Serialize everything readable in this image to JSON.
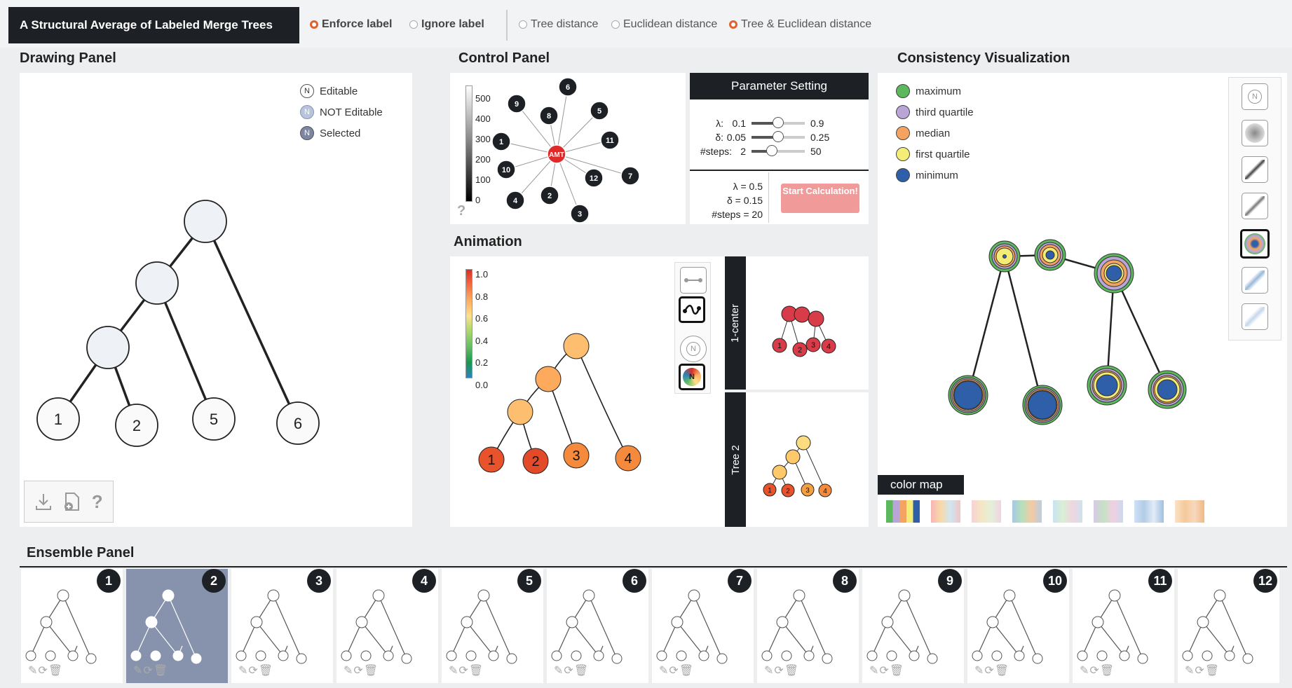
{
  "app": {
    "title": "A Structural Average of Labeled Merge Trees"
  },
  "label_mode": {
    "options": [
      "Enforce label",
      "Ignore label"
    ],
    "selected": "Enforce label"
  },
  "distance_mode": {
    "options": [
      "Tree distance",
      "Euclidean distance",
      "Tree & Euclidean distance"
    ],
    "selected": "Tree & Euclidean distance"
  },
  "drawing_panel": {
    "title": "Drawing Panel",
    "legend": [
      {
        "symbol": "N",
        "label": "Editable",
        "icon": "node-editable-icon"
      },
      {
        "symbol": "N",
        "label": "NOT Editable",
        "icon": "node-not-editable-icon"
      },
      {
        "symbol": "N",
        "label": "Selected",
        "icon": "node-selected-icon"
      }
    ],
    "leaf_labels": [
      "1",
      "2",
      "5",
      "6"
    ],
    "tools": {
      "help": "?"
    }
  },
  "control_panel": {
    "title": "Control Panel",
    "scale_ticks": [
      "500",
      "400",
      "300",
      "200",
      "100",
      "0"
    ],
    "center_label": "AMT",
    "tree_nodes": [
      "1",
      "2",
      "3",
      "4",
      "5",
      "6",
      "7",
      "8",
      "9",
      "10",
      "11",
      "12"
    ],
    "help": "?",
    "parameter": {
      "header": "Parameter Setting",
      "rows": [
        {
          "label": "λ:",
          "min": "0.1",
          "max": "0.9",
          "value_fraction": 0.5
        },
        {
          "label": "δ:",
          "min": "0.05",
          "max": "0.25",
          "value_fraction": 0.5
        },
        {
          "label": "#steps:",
          "min": "2",
          "max": "50",
          "value_fraction": 0.375
        }
      ],
      "current": [
        "λ  =  0.5",
        "δ  =  0.15",
        "#steps  =  20"
      ],
      "start_button": "Start Calculation!"
    }
  },
  "animation": {
    "title": "Animation",
    "scale_ticks": [
      "1.0",
      "0.8",
      "0.6",
      "0.4",
      "0.2",
      "0.0"
    ],
    "leaf_labels": [
      "1",
      "2",
      "3",
      "4"
    ],
    "tabs": [
      "1-center",
      "Tree 2"
    ],
    "mini_labels": [
      "1",
      "2",
      "3",
      "4"
    ],
    "tool_icons": [
      "straight-edge-icon",
      "curved-edge-icon",
      "node-label-icon",
      "color-node-icon"
    ]
  },
  "consistency": {
    "title": "Consistency Visualization",
    "legend": [
      {
        "label": "maximum",
        "color": "#5cb85c"
      },
      {
        "label": "third quartile",
        "color": "#b9a5d6"
      },
      {
        "label": "median",
        "color": "#f4a460"
      },
      {
        "label": "first quartile",
        "color": "#f3ed76"
      },
      {
        "label": "minimum",
        "color": "#2e5fa8"
      }
    ],
    "color_map_label": "color map",
    "style_icons": [
      "node-style-icon",
      "radial-blur-icon",
      "diagonal-dark-icon",
      "diagonal-light-icon",
      "ring-style-icon",
      "diagonal-blue-icon",
      "diagonal-blue-light-icon"
    ]
  },
  "ensemble": {
    "title": "Ensemble Panel",
    "cards": [
      {
        "num": "1",
        "selected": false
      },
      {
        "num": "2",
        "selected": true
      },
      {
        "num": "3",
        "selected": false
      },
      {
        "num": "4",
        "selected": false
      },
      {
        "num": "5",
        "selected": false
      },
      {
        "num": "6",
        "selected": false
      },
      {
        "num": "7",
        "selected": false
      },
      {
        "num": "8",
        "selected": false
      },
      {
        "num": "9",
        "selected": false
      },
      {
        "num": "10",
        "selected": false
      },
      {
        "num": "11",
        "selected": false
      },
      {
        "num": "12",
        "selected": false
      }
    ],
    "tool_glyphs": "✎⟳🗑"
  }
}
